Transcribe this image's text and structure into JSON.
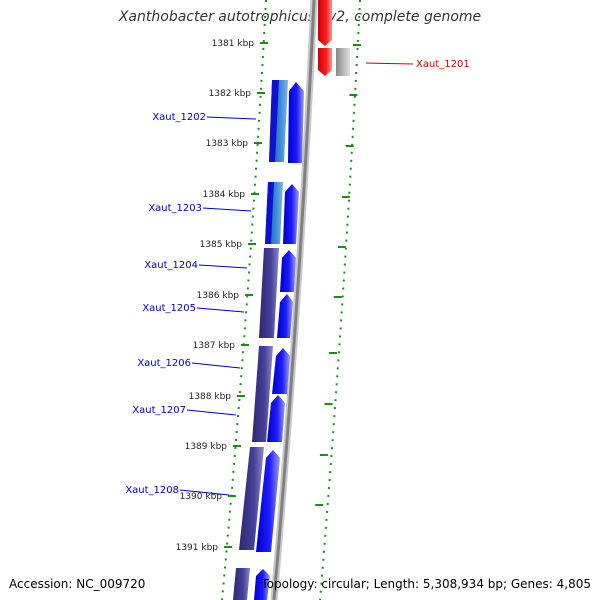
{
  "title": "Xanthobacter autotrophicus Py2, complete genome",
  "footer": {
    "accession": "Accession: NC_009720",
    "summary": "Topology: circular; Length: 5,308,934 bp; Genes: 4,805"
  },
  "ticks": [
    "1381 kbp",
    "1382 kbp",
    "1383 kbp",
    "1384 kbp",
    "1385 kbp",
    "1386 kbp",
    "1387 kbp",
    "1388 kbp",
    "1389 kbp",
    "1390 kbp",
    "1391 kbp"
  ],
  "genes": [
    "Xaut_1201",
    "Xaut_1202",
    "Xaut_1203",
    "Xaut_1204",
    "Xaut_1205",
    "Xaut_1206",
    "Xaut_1207",
    "Xaut_1208"
  ],
  "colors": {
    "forward_gene": "#0000ff",
    "reverse_gene": "#ff0000",
    "cds_band": "#3d3a8c",
    "rna_band": "#2b7fd0",
    "backbone": "#8c8c8c",
    "tick": "#1f8a1f",
    "label_forward": "#0000cc",
    "label_reverse": "#cc0000"
  }
}
